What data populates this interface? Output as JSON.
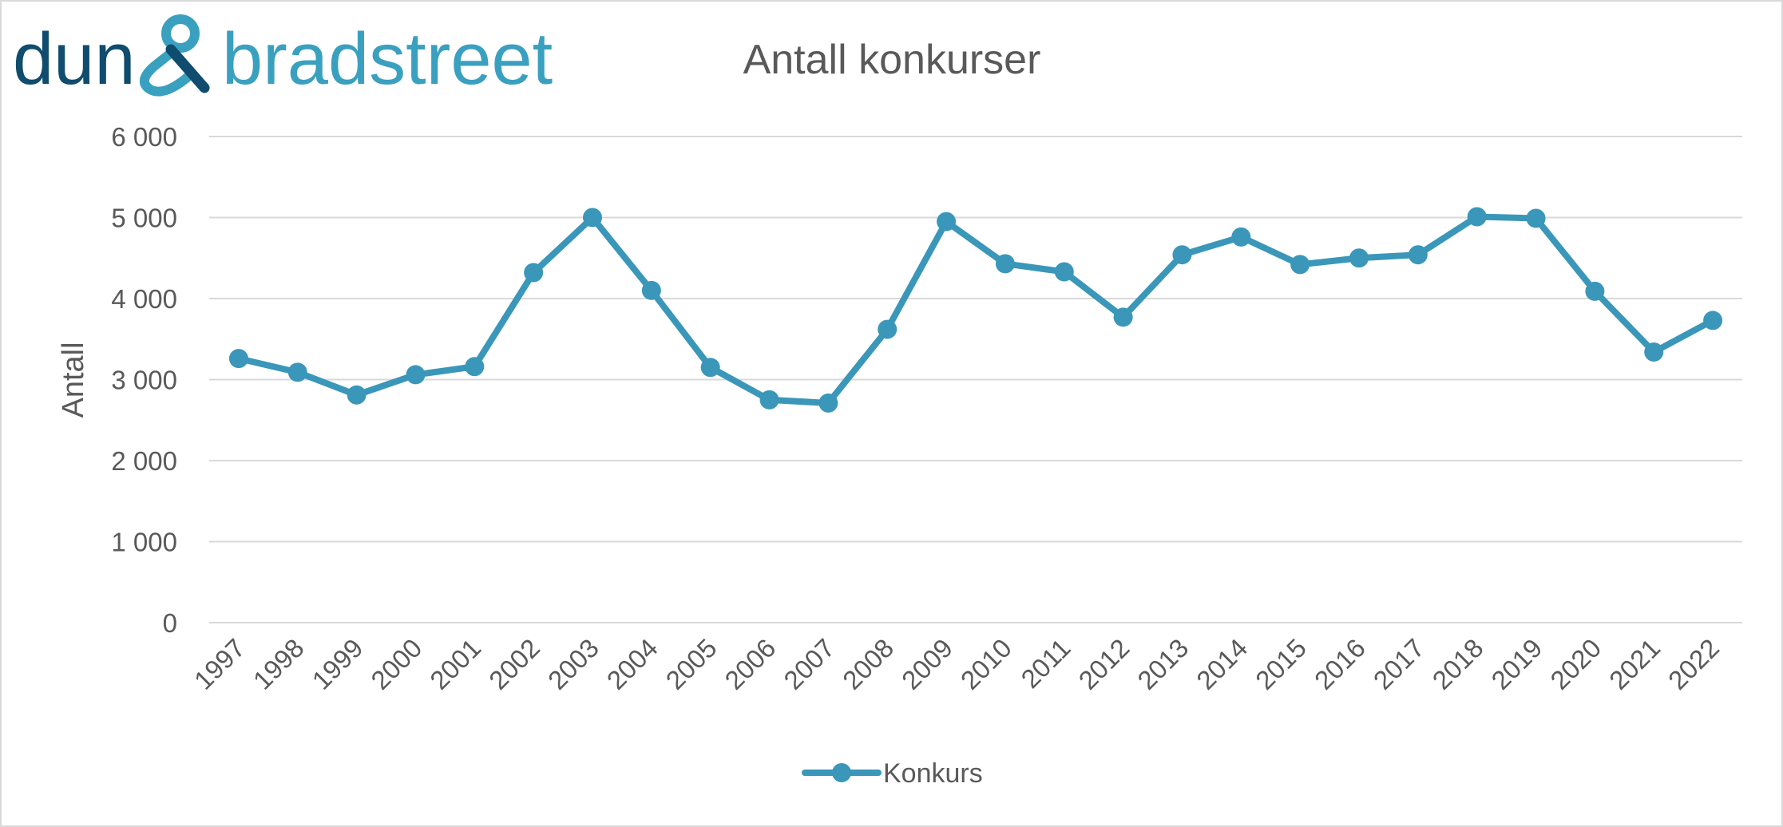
{
  "logo": {
    "part1": "dun",
    "part2": "bradstreet",
    "dark_color": "#0f4c6e",
    "light_color": "#3aa0c0"
  },
  "chart_data": {
    "type": "line",
    "title": "Antall konkurser",
    "xlabel": "",
    "ylabel": "Antall",
    "categories": [
      "1997",
      "1998",
      "1999",
      "2000",
      "2001",
      "2002",
      "2003",
      "2004",
      "2005",
      "2006",
      "2007",
      "2008",
      "2009",
      "2010",
      "2011",
      "2012",
      "2013",
      "2014",
      "2015",
      "2016",
      "2017",
      "2018",
      "2019",
      "2020",
      "2021",
      "2022"
    ],
    "series": [
      {
        "name": "Konkurs",
        "color": "#3a97b9",
        "values": [
          3260,
          3090,
          2810,
          3060,
          3160,
          4320,
          5000,
          4100,
          3150,
          2750,
          2710,
          3620,
          4950,
          4430,
          4330,
          3770,
          4540,
          4760,
          4420,
          4500,
          4540,
          5010,
          4990,
          4090,
          3340,
          3730
        ]
      }
    ],
    "ylim": [
      0,
      6000
    ],
    "yticks": [
      0,
      1000,
      2000,
      3000,
      4000,
      5000,
      6000
    ],
    "ytick_labels": [
      "0",
      "1 000",
      "2 000",
      "3 000",
      "4 000",
      "5 000",
      "6 000"
    ],
    "grid": true,
    "legend_position": "bottom-center"
  }
}
